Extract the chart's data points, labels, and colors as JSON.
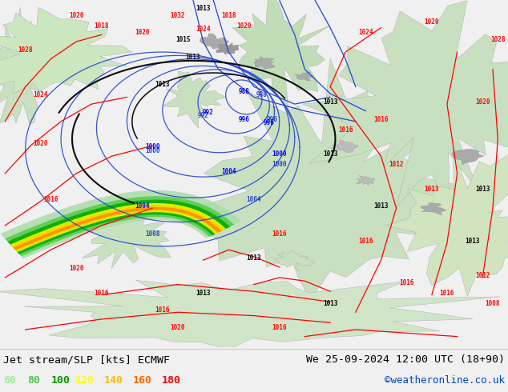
{
  "title_left": "Jet stream/SLP [kts] ECMWF",
  "title_right": "We 25-09-2024 12:00 UTC (18+90)",
  "credit": "©weatheronline.co.uk",
  "legend_values": [
    "60",
    "80",
    "100",
    "120",
    "140",
    "160",
    "180"
  ],
  "legend_colors": [
    "#99ee99",
    "#44cc44",
    "#009900",
    "#ffff00",
    "#ffbb00",
    "#ff6600",
    "#ff0000"
  ],
  "bg_color": "#f0f0f0",
  "land_color_light": "#d8efd8",
  "land_color_med": "#c0e0c0",
  "title_color": "#000000",
  "credit_color": "#0044bb",
  "bottom_bar_color": "#f0f0f0",
  "figsize": [
    6.34,
    4.9
  ],
  "dpi": 100,
  "map_bg": "#e8e8e8"
}
